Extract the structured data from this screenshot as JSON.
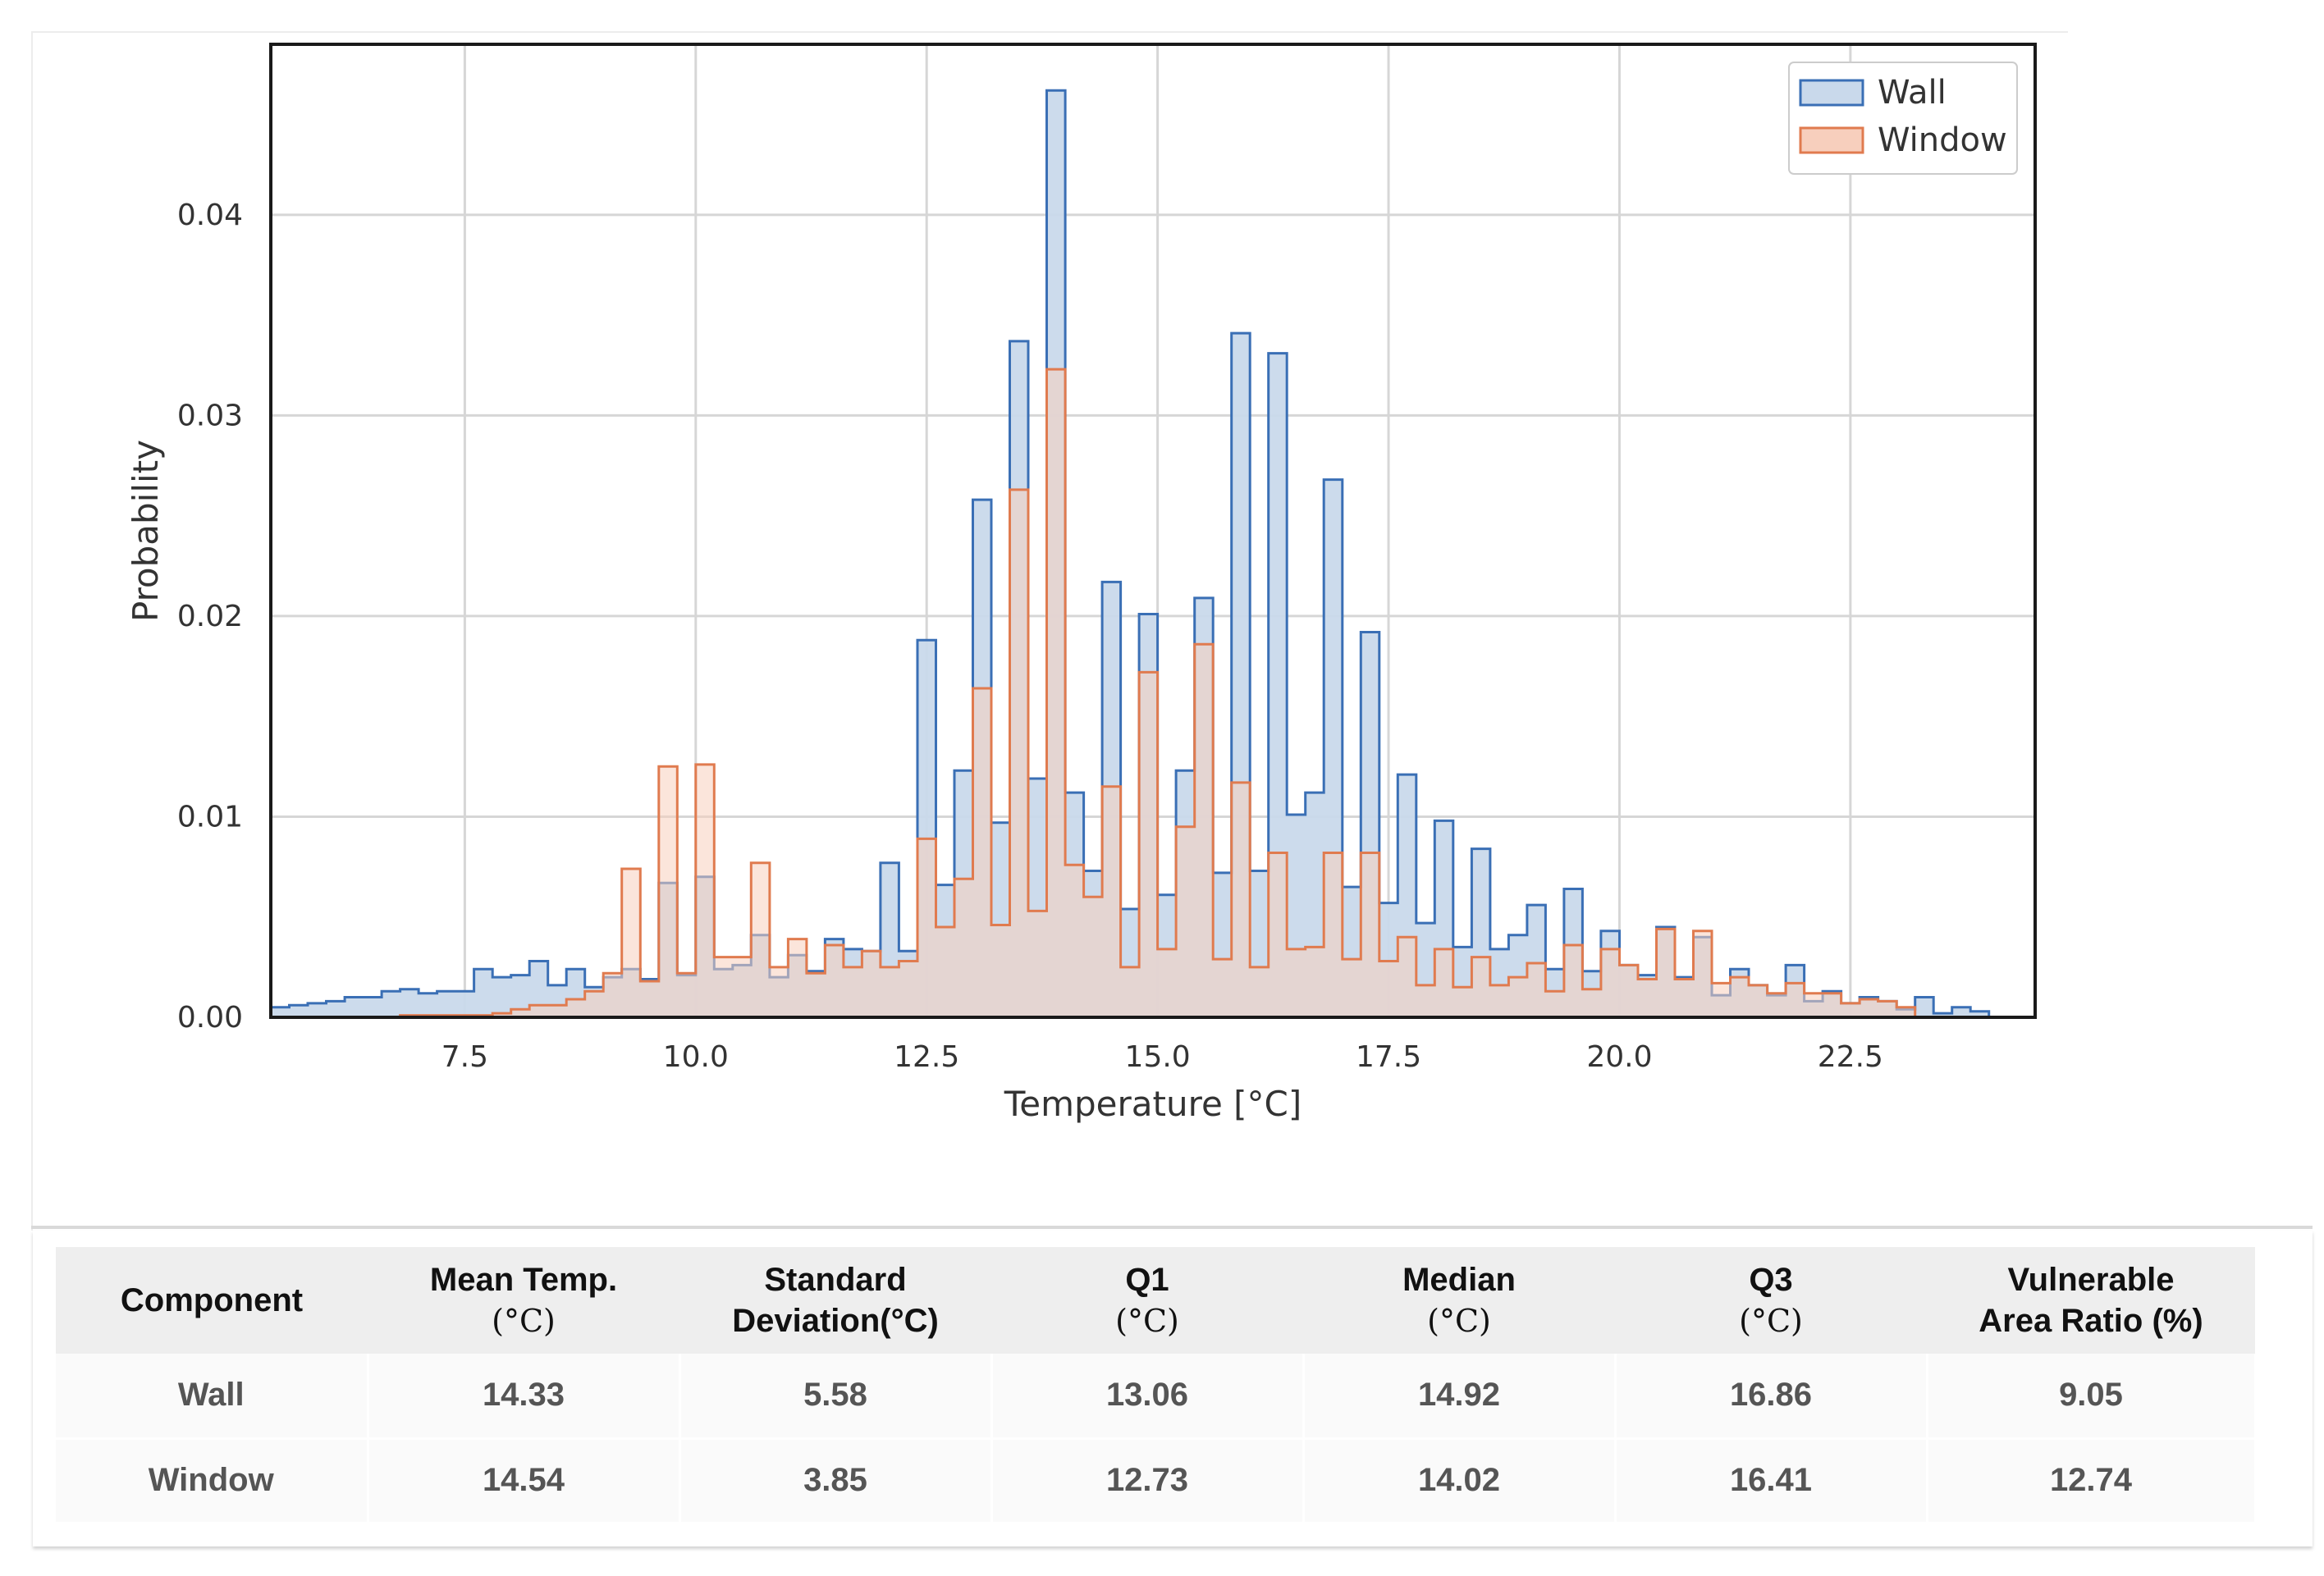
{
  "chart_data": {
    "type": "histogram",
    "xlabel": "Temperature [°C]",
    "ylabel": "Probability",
    "xlim": [
      5.4,
      24.5
    ],
    "ylim": [
      0,
      0.0485
    ],
    "xticks": [
      7.5,
      10.0,
      12.5,
      15.0,
      17.5,
      20.0,
      22.5
    ],
    "xtick_labels": [
      "7.5",
      "10.0",
      "12.5",
      "15.0",
      "17.5",
      "20.0",
      "22.5"
    ],
    "yticks": [
      0,
      0.01,
      0.02,
      0.03,
      0.04
    ],
    "ytick_labels": [
      "0.00",
      "0.01",
      "0.02",
      "0.03",
      "0.04"
    ],
    "grid": true,
    "legend_position": "top-right",
    "series": [
      {
        "name": "Wall",
        "color": "#3a6fb5",
        "fill": "#c9d9eb",
        "start": 5.4,
        "bin_width": 0.2,
        "values": [
          0.0005,
          0.0006,
          0.0007,
          0.0008,
          0.001,
          0.001,
          0.0013,
          0.0014,
          0.0012,
          0.0013,
          0.0013,
          0.0024,
          0.002,
          0.0021,
          0.0028,
          0.0016,
          0.0024,
          0.0015,
          0.002,
          0.0024,
          0.0019,
          0.0067,
          0.0021,
          0.007,
          0.0024,
          0.0026,
          0.0041,
          0.002,
          0.0031,
          0.0023,
          0.0039,
          0.0034,
          0.0033,
          0.0077,
          0.0033,
          0.0188,
          0.0066,
          0.0123,
          0.0258,
          0.0097,
          0.0337,
          0.0119,
          0.0462,
          0.0112,
          0.0073,
          0.0217,
          0.0054,
          0.0201,
          0.0061,
          0.0123,
          0.0209,
          0.0072,
          0.0341,
          0.0073,
          0.0331,
          0.0101,
          0.0112,
          0.0268,
          0.0065,
          0.0192,
          0.0057,
          0.0121,
          0.0047,
          0.0098,
          0.0035,
          0.0084,
          0.0034,
          0.0041,
          0.0056,
          0.0024,
          0.0064,
          0.0023,
          0.0043,
          0.0026,
          0.0021,
          0.0045,
          0.002,
          0.004,
          0.0011,
          0.0024,
          0.0016,
          0.0011,
          0.0026,
          0.0008,
          0.0013,
          0.0007,
          0.001,
          0.0008,
          0.0004,
          0.001,
          0.0002,
          0.0005,
          0.0003
        ]
      },
      {
        "name": "Window",
        "color": "#e07b4f",
        "fill": "#f7cfbd",
        "start": 5.4,
        "bin_width": 0.2,
        "values": [
          0,
          0,
          0,
          0,
          0,
          0,
          0,
          0.0001,
          0.0001,
          0.0001,
          0.0001,
          0.0001,
          0.0002,
          0.0004,
          0.0006,
          0.0006,
          0.0009,
          0.0013,
          0.0022,
          0.0074,
          0.0018,
          0.0125,
          0.0022,
          0.0126,
          0.003,
          0.003,
          0.0077,
          0.0025,
          0.0039,
          0.0022,
          0.0036,
          0.0025,
          0.0033,
          0.0025,
          0.0028,
          0.0089,
          0.0045,
          0.0069,
          0.0164,
          0.0046,
          0.0263,
          0.0053,
          0.0323,
          0.0076,
          0.006,
          0.0115,
          0.0025,
          0.0172,
          0.0034,
          0.0095,
          0.0186,
          0.0029,
          0.0117,
          0.0025,
          0.0082,
          0.0034,
          0.0035,
          0.0082,
          0.0029,
          0.0082,
          0.0028,
          0.004,
          0.0016,
          0.0034,
          0.0015,
          0.003,
          0.0016,
          0.002,
          0.0027,
          0.0013,
          0.0036,
          0.0014,
          0.0034,
          0.0026,
          0.0019,
          0.0044,
          0.0019,
          0.0043,
          0.0017,
          0.002,
          0.0016,
          0.0012,
          0.0017,
          0.0012,
          0.0012,
          0.0007,
          0.0009,
          0.0008,
          0.0005,
          0,
          0,
          0,
          0
        ]
      }
    ]
  },
  "table": {
    "headers": [
      {
        "line1": "Component",
        "line2": ""
      },
      {
        "line1": "Mean Temp.",
        "line2": "(°C)"
      },
      {
        "line1": "Standard",
        "line2": "Deviation(°C)"
      },
      {
        "line1": "Q1",
        "line2": "(°C)"
      },
      {
        "line1": "Median",
        "line2": "(°C)"
      },
      {
        "line1": "Q3",
        "line2": "(°C)"
      },
      {
        "line1": "Vulnerable",
        "line2": "Area Ratio (%)"
      }
    ],
    "rows": [
      [
        "Wall",
        "14.33",
        "5.58",
        "13.06",
        "14.92",
        "16.86",
        "9.05"
      ],
      [
        "Window",
        "14.54",
        "3.85",
        "12.73",
        "14.02",
        "16.41",
        "12.74"
      ]
    ]
  }
}
